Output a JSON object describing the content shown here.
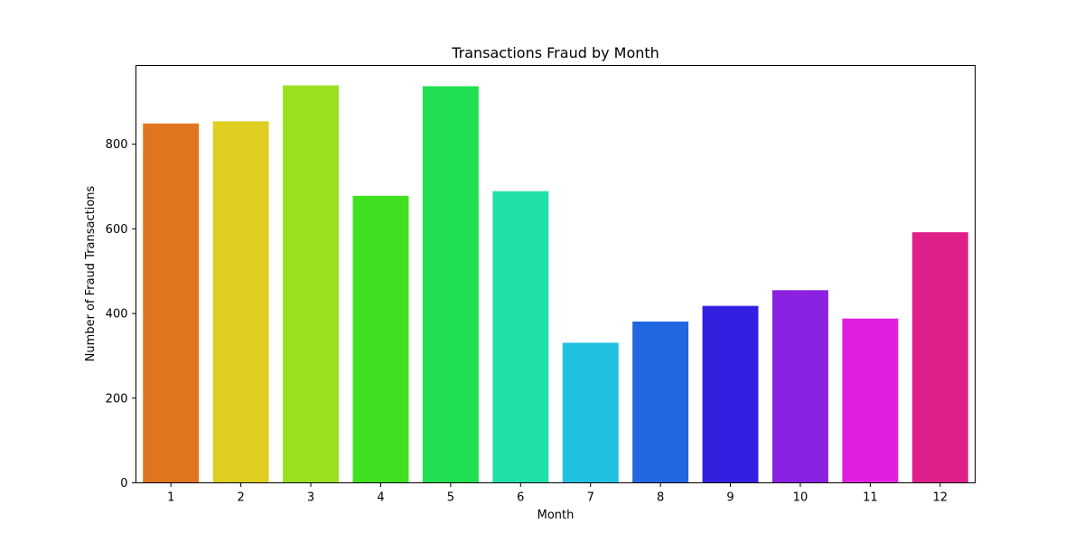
{
  "chart_data": {
    "type": "bar",
    "title": "Transactions Fraud by Month",
    "xlabel": "Month",
    "ylabel": "Number of Fraud Transactions",
    "categories": [
      "1",
      "2",
      "3",
      "4",
      "5",
      "6",
      "7",
      "8",
      "9",
      "10",
      "11",
      "12"
    ],
    "values": [
      849,
      854,
      939,
      678,
      937,
      689,
      331,
      381,
      418,
      455,
      388,
      592
    ],
    "colors": [
      "#e07520",
      "#e0cf20",
      "#99e020",
      "#40e020",
      "#20e051",
      "#20e0a8",
      "#20c0e0",
      "#2067e0",
      "#3220e0",
      "#8a20e0",
      "#e020e0",
      "#e0208a"
    ],
    "ylim": [
      0,
      985.95
    ],
    "yticks": [
      0,
      200,
      400,
      600,
      800
    ],
    "grid": false,
    "legend": "none"
  }
}
